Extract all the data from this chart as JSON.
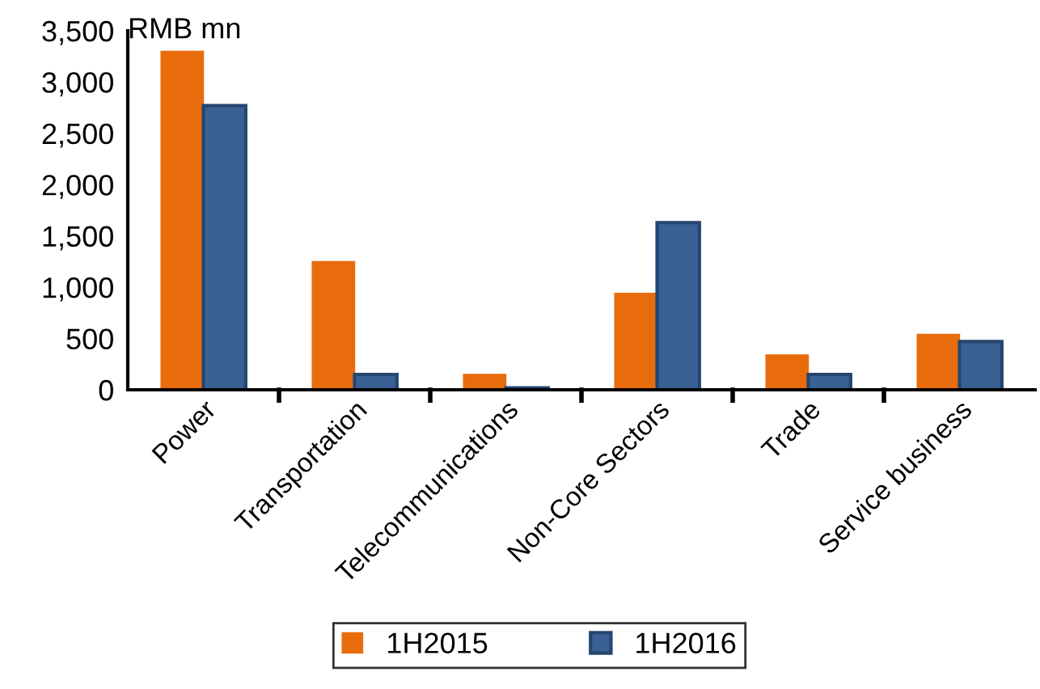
{
  "chart_data": {
    "type": "bar",
    "ylabel": "RMB mn",
    "categories": [
      "Power",
      "Transportation",
      "Telecommunications",
      "Non-Core Sectors",
      "Trade",
      "Service business"
    ],
    "series": [
      {
        "name": "1H2015",
        "color": "#e96c0c",
        "values": [
          3300,
          1250,
          150,
          940,
          340,
          540
        ]
      },
      {
        "name": "1H2016",
        "color": "#3a6094",
        "values": [
          2770,
          150,
          20,
          1630,
          150,
          470
        ]
      }
    ],
    "ylim": [
      0,
      3500
    ],
    "yticks": [
      {
        "value": 0,
        "label": "0"
      },
      {
        "value": 500,
        "label": "500"
      },
      {
        "value": 1000,
        "label": "1,000"
      },
      {
        "value": 1500,
        "label": "1,500"
      },
      {
        "value": 2000,
        "label": "2,000"
      },
      {
        "value": 2500,
        "label": "2,500"
      },
      {
        "value": 3000,
        "label": "3,000"
      },
      {
        "value": 3500,
        "label": "3,500"
      }
    ],
    "grid": false,
    "legend": "bottom"
  }
}
